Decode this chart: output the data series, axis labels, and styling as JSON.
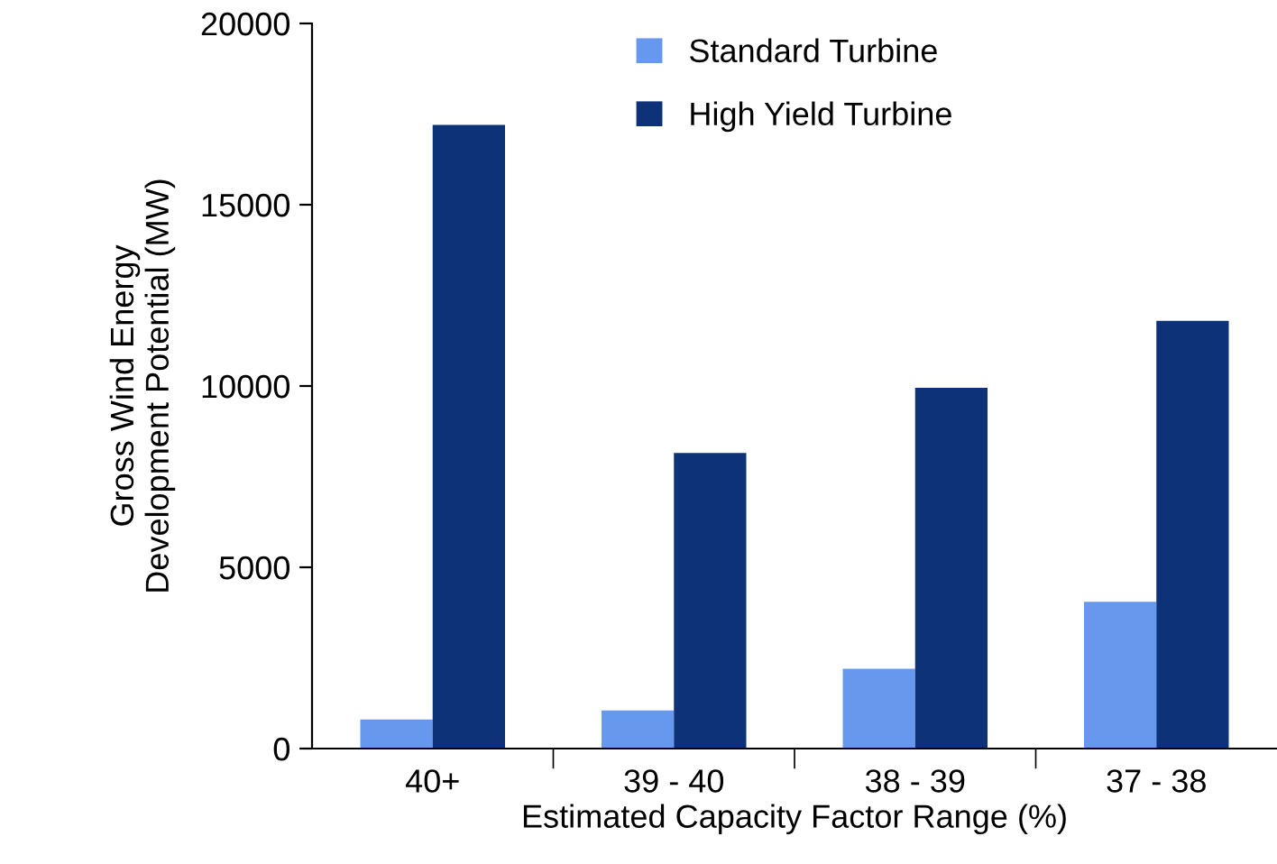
{
  "chart_data": {
    "type": "bar",
    "xlabel": "Estimated Capacity Factor Range (%)",
    "ylabel": "Gross Wind Energy\nDevelopment Potential (MW)",
    "categories": [
      "40+",
      "39 - 40",
      "38 - 39",
      "37 - 38"
    ],
    "series": [
      {
        "name": "Standard Turbine",
        "color": "#6699ee",
        "values": [
          800,
          1050,
          2200,
          4050
        ]
      },
      {
        "name": "High Yield Turbine",
        "color": "#0d3278",
        "values": [
          17200,
          8150,
          9950,
          11800
        ]
      }
    ],
    "ylim": [
      0,
      20000
    ],
    "yticks": [
      0,
      5000,
      10000,
      15000,
      20000
    ],
    "grid": false,
    "legend": "top"
  }
}
